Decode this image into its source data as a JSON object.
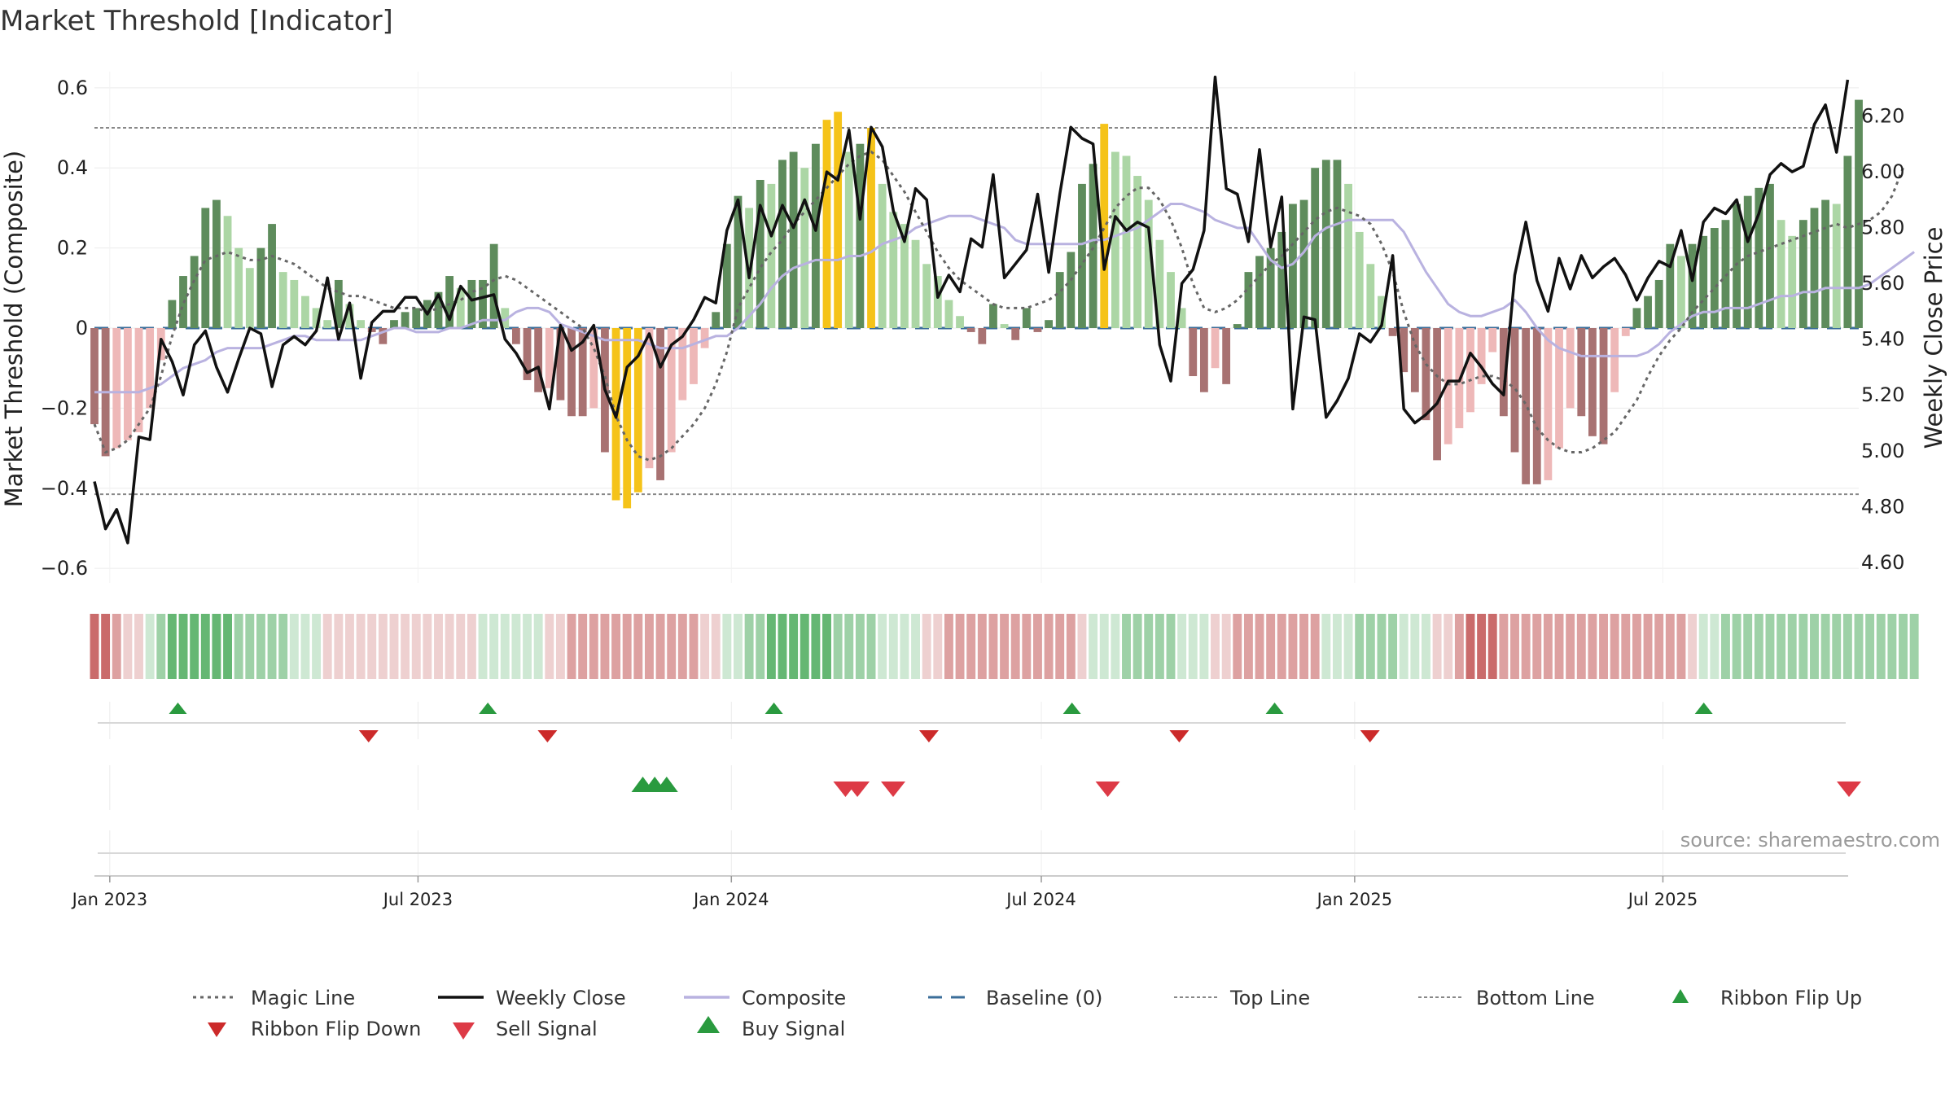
{
  "chart_data": {
    "type": "bar",
    "title": "Market Threshold [Indicator]",
    "ylabel": "Market Threshold (Composite)",
    "y2label": "Weekly Close Price",
    "ylim": [
      -0.62,
      0.62
    ],
    "y2lim": [
      4.55,
      6.33
    ],
    "yticks": [
      0.6,
      0.4,
      0.2,
      0,
      -0.2,
      -0.4,
      -0.6
    ],
    "ytick_labels": [
      "0.6",
      "0.4",
      "0.2",
      "0",
      "−0.2",
      "−0.4",
      "−0.6"
    ],
    "y2ticks": [
      6.2,
      6.0,
      5.8,
      5.6,
      5.4,
      5.2,
      5.0,
      4.8,
      4.6
    ],
    "y2tick_labels": [
      "6.20",
      "6.00",
      "5.80",
      "5.60",
      "5.40",
      "5.20",
      "5.00",
      "4.80",
      "4.60"
    ],
    "x_start": "2022-12-23",
    "x_end": "2025-10-24",
    "x_ticks": [
      {
        "date": "2023-01-01",
        "label": "Jan 2023"
      },
      {
        "date": "2023-07-01",
        "label": "Jul 2023"
      },
      {
        "date": "2024-01-01",
        "label": "Jan 2024"
      },
      {
        "date": "2024-07-01",
        "label": "Jul 2024"
      },
      {
        "date": "2025-01-01",
        "label": "Jan 2025"
      },
      {
        "date": "2025-07-01",
        "label": "Jul 2025"
      }
    ],
    "top_line": 0.5,
    "bottom_line": -0.415,
    "grid": true,
    "legend_position": "bottom",
    "composite_bars": [
      -0.24,
      -0.32,
      -0.3,
      -0.28,
      -0.26,
      -0.2,
      -0.08,
      0.07,
      0.13,
      0.18,
      0.3,
      0.32,
      0.28,
      0.2,
      0.15,
      0.2,
      0.26,
      0.14,
      0.12,
      0.08,
      0.05,
      0.02,
      0.12,
      0.06,
      0.02,
      -0.01,
      -0.04,
      0.02,
      0.04,
      0.05,
      0.07,
      0.09,
      0.13,
      0.1,
      0.12,
      0.12,
      0.21,
      0.05,
      -0.04,
      -0.13,
      -0.16,
      -0.15,
      -0.18,
      -0.22,
      -0.22,
      -0.2,
      -0.31,
      -0.43,
      -0.45,
      -0.41,
      -0.35,
      -0.38,
      -0.31,
      -0.18,
      -0.14,
      -0.05,
      0.04,
      0.21,
      0.33,
      0.3,
      0.37,
      0.36,
      0.42,
      0.44,
      0.4,
      0.46,
      0.52,
      0.54,
      0.44,
      0.46,
      0.5,
      0.36,
      0.29,
      0.26,
      0.22,
      0.16,
      0.13,
      0.07,
      0.03,
      -0.01,
      -0.04,
      0.06,
      0.01,
      -0.03,
      0.05,
      -0.01,
      0.02,
      0.14,
      0.19,
      0.36,
      0.41,
      0.51,
      0.44,
      0.43,
      0.38,
      0.32,
      0.22,
      0.14,
      0.05,
      -0.12,
      -0.16,
      -0.1,
      -0.14,
      0.01,
      0.14,
      0.18,
      0.2,
      0.24,
      0.31,
      0.32,
      0.4,
      0.42,
      0.42,
      0.36,
      0.24,
      0.16,
      0.08,
      -0.02,
      -0.11,
      -0.16,
      -0.23,
      -0.33,
      -0.29,
      -0.25,
      -0.21,
      -0.14,
      -0.06,
      -0.22,
      -0.31,
      -0.39,
      -0.39,
      -0.38,
      -0.3,
      -0.2,
      -0.22,
      -0.27,
      -0.29,
      -0.16,
      -0.02,
      0.05,
      0.08,
      0.12,
      0.21,
      0.18,
      0.21,
      0.23,
      0.25,
      0.27,
      0.31,
      0.33,
      0.35,
      0.36,
      0.27,
      0.23,
      0.27,
      0.3,
      0.32,
      0.31,
      0.43,
      0.57
    ],
    "composite_line": [
      -0.16,
      -0.16,
      -0.16,
      -0.16,
      -0.16,
      -0.15,
      -0.14,
      -0.12,
      -0.1,
      -0.09,
      -0.08,
      -0.06,
      -0.05,
      -0.05,
      -0.05,
      -0.05,
      -0.04,
      -0.03,
      -0.02,
      -0.02,
      -0.03,
      -0.03,
      -0.03,
      -0.03,
      -0.03,
      -0.02,
      -0.01,
      0.0,
      0.0,
      -0.01,
      -0.01,
      -0.01,
      0.0,
      0.0,
      0.01,
      0.02,
      0.02,
      0.02,
      0.04,
      0.05,
      0.05,
      0.04,
      0.01,
      0.0,
      -0.01,
      -0.02,
      -0.03,
      -0.03,
      -0.03,
      -0.03,
      -0.04,
      -0.05,
      -0.05,
      -0.05,
      -0.04,
      -0.03,
      -0.02,
      -0.02,
      0.0,
      0.03,
      0.06,
      0.1,
      0.13,
      0.15,
      0.16,
      0.17,
      0.17,
      0.17,
      0.18,
      0.18,
      0.19,
      0.21,
      0.22,
      0.23,
      0.25,
      0.26,
      0.27,
      0.28,
      0.28,
      0.28,
      0.27,
      0.26,
      0.25,
      0.22,
      0.21,
      0.21,
      0.21,
      0.21,
      0.21,
      0.21,
      0.22,
      0.22,
      0.23,
      0.24,
      0.25,
      0.27,
      0.29,
      0.31,
      0.31,
      0.3,
      0.29,
      0.27,
      0.26,
      0.25,
      0.25,
      0.21,
      0.17,
      0.15,
      0.16,
      0.19,
      0.23,
      0.25,
      0.26,
      0.27,
      0.27,
      0.27,
      0.27,
      0.27,
      0.24,
      0.19,
      0.14,
      0.1,
      0.06,
      0.04,
      0.03,
      0.03,
      0.04,
      0.05,
      0.07,
      0.04,
      0.0,
      -0.03,
      -0.05,
      -0.06,
      -0.07,
      -0.07,
      -0.07,
      -0.07,
      -0.07,
      -0.07,
      -0.06,
      -0.04,
      -0.01,
      0.01,
      0.03,
      0.04,
      0.04,
      0.05,
      0.05,
      0.05,
      0.06,
      0.07,
      0.08,
      0.08,
      0.09,
      0.09,
      0.1,
      0.1,
      0.1,
      0.1,
      0.11,
      0.13,
      0.15,
      0.17,
      0.19
    ],
    "magic_line": [
      -0.24,
      -0.31,
      -0.3,
      -0.28,
      -0.24,
      -0.2,
      -0.12,
      -0.02,
      0.06,
      0.12,
      0.17,
      0.18,
      0.19,
      0.18,
      0.17,
      0.17,
      0.18,
      0.17,
      0.16,
      0.14,
      0.12,
      0.1,
      0.09,
      0.08,
      0.08,
      0.07,
      0.06,
      0.05,
      0.05,
      0.05,
      0.04,
      0.05,
      0.06,
      0.07,
      0.09,
      0.1,
      0.12,
      0.13,
      0.12,
      0.1,
      0.08,
      0.06,
      0.04,
      0.02,
      0.0,
      -0.05,
      -0.12,
      -0.22,
      -0.28,
      -0.32,
      -0.33,
      -0.32,
      -0.3,
      -0.27,
      -0.24,
      -0.2,
      -0.14,
      -0.06,
      0.05,
      0.1,
      0.15,
      0.19,
      0.22,
      0.26,
      0.29,
      0.32,
      0.35,
      0.38,
      0.41,
      0.43,
      0.44,
      0.42,
      0.38,
      0.34,
      0.29,
      0.24,
      0.19,
      0.15,
      0.12,
      0.1,
      0.08,
      0.06,
      0.05,
      0.05,
      0.05,
      0.06,
      0.07,
      0.09,
      0.12,
      0.16,
      0.2,
      0.25,
      0.3,
      0.33,
      0.35,
      0.35,
      0.32,
      0.27,
      0.2,
      0.11,
      0.05,
      0.04,
      0.05,
      0.07,
      0.1,
      0.13,
      0.16,
      0.18,
      0.21,
      0.24,
      0.27,
      0.29,
      0.3,
      0.29,
      0.28,
      0.26,
      0.21,
      0.14,
      0.04,
      -0.04,
      -0.09,
      -0.12,
      -0.14,
      -0.14,
      -0.13,
      -0.12,
      -0.12,
      -0.13,
      -0.15,
      -0.19,
      -0.25,
      -0.28,
      -0.3,
      -0.31,
      -0.31,
      -0.3,
      -0.28,
      -0.26,
      -0.22,
      -0.18,
      -0.12,
      -0.07,
      -0.03,
      0.0,
      0.04,
      0.07,
      0.1,
      0.13,
      0.16,
      0.18,
      0.19,
      0.2,
      0.21,
      0.22,
      0.23,
      0.24,
      0.25,
      0.26,
      0.25,
      0.26,
      0.27,
      0.29,
      0.33,
      0.4
    ],
    "weekly_close": [
      4.89,
      4.72,
      4.79,
      4.67,
      5.05,
      5.04,
      5.4,
      5.32,
      5.2,
      5.38,
      5.43,
      5.3,
      5.21,
      5.33,
      5.44,
      5.42,
      5.23,
      5.38,
      5.41,
      5.38,
      5.43,
      5.62,
      5.4,
      5.53,
      5.26,
      5.46,
      5.5,
      5.5,
      5.55,
      5.55,
      5.49,
      5.56,
      5.47,
      5.59,
      5.54,
      5.55,
      5.56,
      5.4,
      5.35,
      5.28,
      5.3,
      5.15,
      5.45,
      5.36,
      5.39,
      5.45,
      5.22,
      5.12,
      5.3,
      5.34,
      5.42,
      5.3,
      5.38,
      5.41,
      5.47,
      5.55,
      5.53,
      5.79,
      5.9,
      5.62,
      5.88,
      5.77,
      5.88,
      5.8,
      5.9,
      5.79,
      6.0,
      5.97,
      6.15,
      5.83,
      6.16,
      6.09,
      5.86,
      5.75,
      5.94,
      5.9,
      5.55,
      5.63,
      5.57,
      5.76,
      5.73,
      5.99,
      5.62,
      5.67,
      5.72,
      5.92,
      5.64,
      5.92,
      6.16,
      6.12,
      6.1,
      5.65,
      5.84,
      5.79,
      5.82,
      5.8,
      5.38,
      5.25,
      5.6,
      5.65,
      5.79,
      6.34,
      5.94,
      5.92,
      5.75,
      6.08,
      5.73,
      5.91,
      5.15,
      5.48,
      5.47,
      5.12,
      5.18,
      5.26,
      5.42,
      5.39,
      5.45,
      5.7,
      5.15,
      5.1,
      5.13,
      5.17,
      5.25,
      5.25,
      5.35,
      5.3,
      5.24,
      5.2,
      5.63,
      5.82,
      5.61,
      5.5,
      5.69,
      5.58,
      5.7,
      5.62,
      5.66,
      5.69,
      5.63,
      5.54,
      5.62,
      5.68,
      5.66,
      5.79,
      5.61,
      5.82,
      5.87,
      5.85,
      5.9,
      5.75,
      5.85,
      5.99,
      6.03,
      6.0,
      6.02,
      6.17,
      6.24,
      6.07,
      6.33
    ],
    "ribbon": [
      -3,
      -3,
      -2,
      -1,
      -1,
      1,
      2,
      3,
      3,
      3,
      3,
      3,
      3,
      2,
      2,
      2,
      2,
      2,
      1,
      1,
      1,
      -1,
      -1,
      -1,
      -1,
      -1,
      -1,
      -1,
      -1,
      -1,
      -1,
      -1,
      -1,
      -1,
      -1,
      1,
      1,
      1,
      1,
      1,
      1,
      -1,
      -1,
      -2,
      -2,
      -2,
      -2,
      -2,
      -2,
      -2,
      -2,
      -2,
      -2,
      -2,
      -2,
      -1,
      -1,
      1,
      1,
      2,
      2,
      3,
      3,
      3,
      3,
      3,
      3,
      2,
      2,
      2,
      2,
      1,
      1,
      1,
      1,
      -1,
      -1,
      -2,
      -2,
      -2,
      -2,
      -2,
      -2,
      -2,
      -2,
      -2,
      -2,
      -2,
      -2,
      -1,
      1,
      1,
      1,
      2,
      2,
      2,
      2,
      2,
      1,
      1,
      1,
      -1,
      -1,
      -2,
      -2,
      -2,
      -2,
      -2,
      -2,
      -2,
      -2,
      1,
      1,
      1,
      2,
      2,
      2,
      2,
      1,
      1,
      1,
      -1,
      -1,
      -2,
      -3,
      -3,
      -3,
      -2,
      -2,
      -2,
      -2,
      -2,
      -2,
      -2,
      -2,
      -2,
      -2,
      -2,
      -2,
      -2,
      -2,
      -2,
      -2,
      -2,
      -1,
      1,
      1,
      2,
      2,
      2,
      2,
      2,
      2,
      2,
      2,
      2,
      2,
      2,
      2,
      2,
      2,
      2,
      2,
      2,
      2
    ],
    "ribbon_flip_up": [
      "2023-02-10",
      "2023-08-11",
      "2024-01-26",
      "2024-07-19",
      "2024-11-15",
      "2025-07-25"
    ],
    "ribbon_flip_down": [
      "2023-06-02",
      "2023-09-15",
      "2024-04-26",
      "2024-09-20",
      "2025-01-10"
    ],
    "buy_signal": [
      "2023-11-10",
      "2023-11-17",
      "2023-11-24"
    ],
    "sell_signal": [
      "2024-03-08",
      "2024-03-15",
      "2024-04-05",
      "2024-08-09",
      "2025-10-24"
    ],
    "highlight_bar_index": [
      47,
      48,
      49,
      66,
      67,
      70,
      91,
      164
    ],
    "series": [
      {
        "name": "Magic Line"
      },
      {
        "name": "Weekly Close"
      },
      {
        "name": "Composite"
      },
      {
        "name": "Baseline (0)"
      },
      {
        "name": "Top Line"
      },
      {
        "name": "Bottom Line"
      },
      {
        "name": "Ribbon Flip Up"
      },
      {
        "name": "Ribbon Flip Down"
      },
      {
        "name": "Sell Signal"
      },
      {
        "name": "Buy Signal"
      }
    ],
    "annotation": "source: sharemaestro.com"
  },
  "colors": {
    "bar_pos_strong": "#5e8c5c",
    "bar_pos_light": "#acd6a5",
    "bar_neg_strong": "#a87272",
    "bar_neg_light": "#eeb8b8",
    "bar_highlight": "#f5c319",
    "weekly_close": "#111111",
    "composite": "#b9b2e0",
    "magic_line": "#666666",
    "baseline": "#3b6e9a",
    "guide_line": "#888888",
    "ribbon_up": "#5db36c",
    "ribbon_down": "#c76363",
    "flip_up": "#2a9a3f",
    "flip_down": "#cc2a2a",
    "buy": "#2a9a3f",
    "sell": "#dd3a46"
  }
}
